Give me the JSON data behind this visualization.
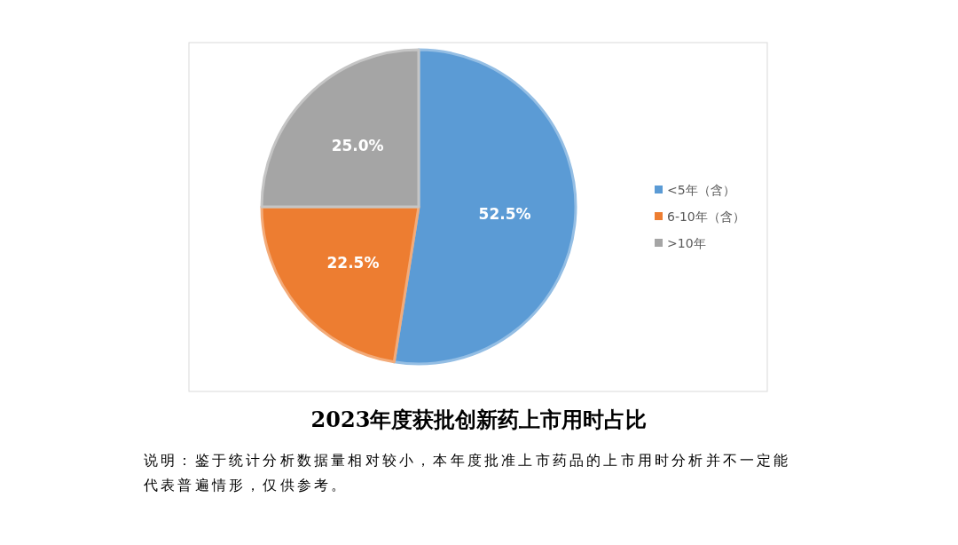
{
  "chart_data": {
    "type": "pie",
    "title": "2023年度获批创新药上市用时占比",
    "annotations": [
      "说明：鉴于统计分析数据量相对较小，本年度批准上市药品的上市用时分析并不一定能代表普遍情形，仅供参考。"
    ],
    "categories": [
      "<5年（含）",
      "6-10年（含）",
      ">10年"
    ],
    "values": [
      52.5,
      22.5,
      25.0
    ],
    "colors": [
      "#5b9bd5",
      "#ed7d31",
      "#a5a5a5"
    ],
    "value_labels": [
      "52.5%",
      "22.5%",
      "25.0%"
    ],
    "legend": "right"
  }
}
